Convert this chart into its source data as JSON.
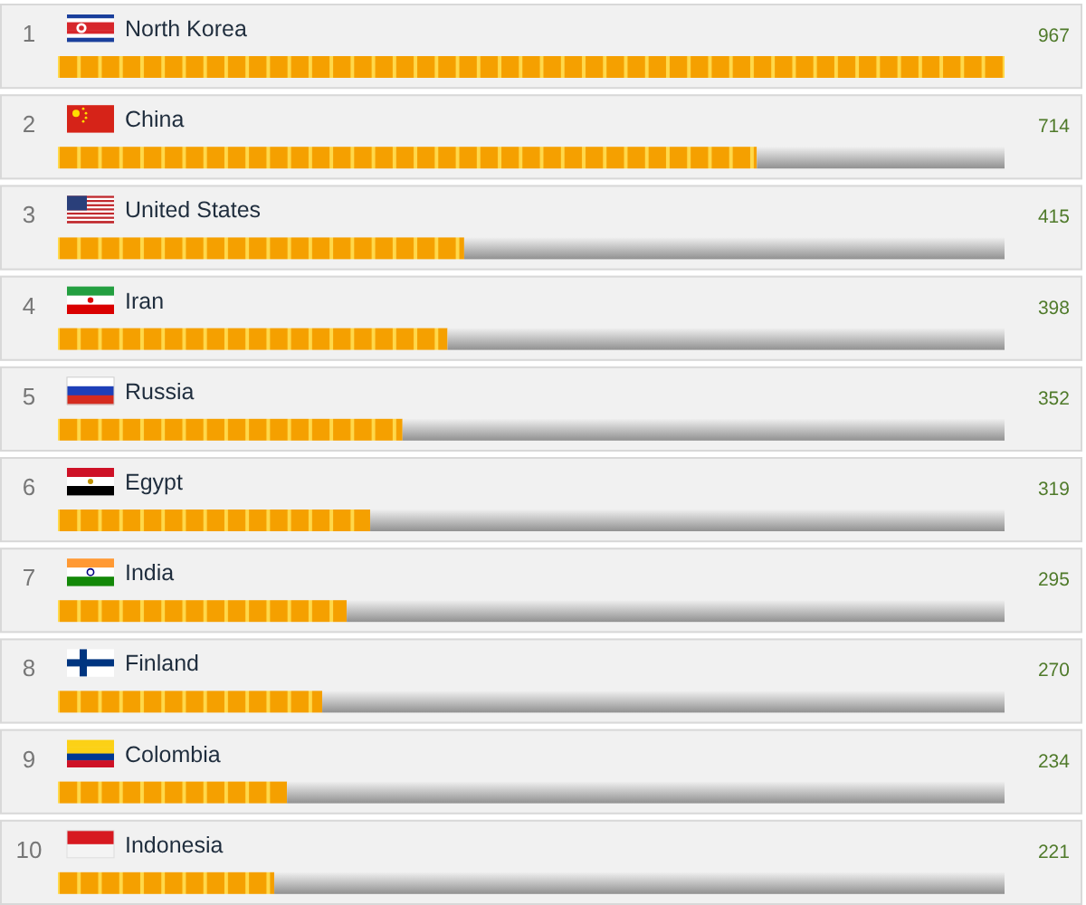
{
  "chart_data": {
    "type": "bar",
    "orientation": "horizontal",
    "stacked": true,
    "categories": [
      "North Korea",
      "China",
      "United States",
      "Iran",
      "Russia",
      "Egypt",
      "India",
      "Finland",
      "Colombia",
      "Indonesia"
    ],
    "series": [
      {
        "color": "#f5a000",
        "values": [
          967,
          714,
          415,
          398,
          352,
          319,
          295,
          270,
          234,
          221
        ],
        "value_labels": [
          "967",
          "714",
          "415",
          "398",
          "352",
          "319",
          "295",
          "270",
          "234",
          "221"
        ]
      },
      {
        "color": "#b4b4b4",
        "values": [
          0,
          253,
          552,
          569,
          615,
          648,
          672,
          697,
          733,
          746
        ]
      }
    ],
    "xlim": [
      0,
      967
    ],
    "annotations": [
      "1",
      "2",
      "3",
      "4",
      "5",
      "6",
      "7",
      "8",
      "9",
      "10"
    ]
  }
}
